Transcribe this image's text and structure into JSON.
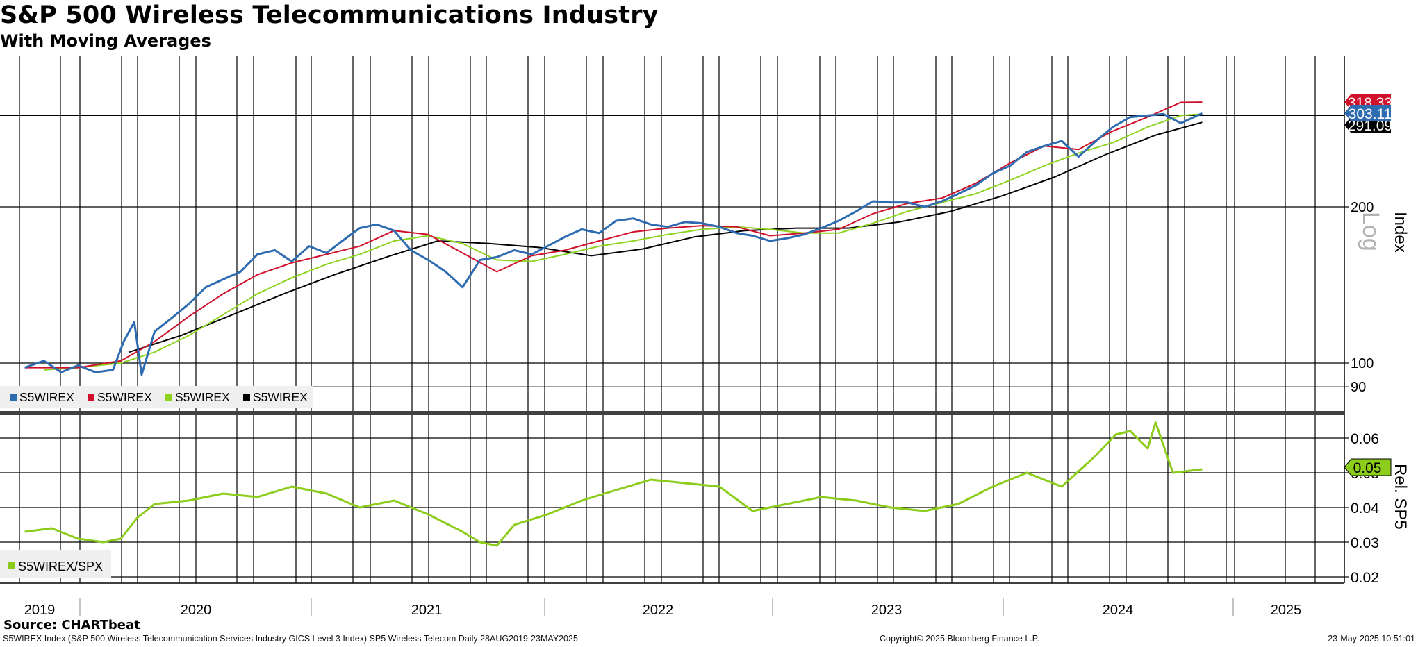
{
  "title": "S&P 500 Wireless Telecommunications Industry",
  "subtitle": "With Moving Averages",
  "source": "Source: CHARTbeat",
  "footer": {
    "left": "S5WIREX Index (S&P 500 Wireless Telecommunication Services Industry GICS Level 3 Index) SP5 Wireless Telecom  Daily 28AUG2019-23MAY2025",
    "middle": "Copyright© 2025 Bloomberg Finance L.P.",
    "right": "23-May-2025 10:51:01"
  },
  "colors": {
    "index": "#2E6BB0",
    "ma_red": "#D0102A",
    "ma_green": "#8ED320",
    "ma_black": "#000000",
    "relative": "#8CCC1A"
  },
  "chart_data": [
    {
      "type": "line",
      "panel": "upper",
      "scale": "log",
      "ylabel": "Index",
      "scale_label": "Log",
      "y_ticks": [
        90,
        100,
        200
      ],
      "ylim": [
        84,
        360
      ],
      "x_range": [
        "2019-08-28",
        "2025-05-23"
      ],
      "x_tick_labels": [
        "2019",
        "2020",
        "2021",
        "2022",
        "2023",
        "2024",
        "2025"
      ],
      "last_value_labels": [
        {
          "text": "318.33",
          "color": "#D0102A"
        },
        {
          "text": "303.11",
          "color": "#2E6BB0"
        },
        {
          "text": "291.09",
          "color": "#000000"
        }
      ],
      "legend": [
        "S5WIREX",
        "S5WIREX",
        "S5WIREX",
        "S5WIREX"
      ],
      "series": [
        {
          "name": "S5WIREX",
          "color": "#2E6BB0",
          "x": [
            "2019-08-28",
            "2019-10-01",
            "2019-11-01",
            "2019-12-01",
            "2020-01-01",
            "2020-02-01",
            "2020-02-20",
            "2020-03-10",
            "2020-03-23",
            "2020-04-15",
            "2020-05-15",
            "2020-06-15",
            "2020-07-15",
            "2020-08-15",
            "2020-09-15",
            "2020-10-15",
            "2020-11-15",
            "2020-12-15",
            "2021-01-15",
            "2021-02-15",
            "2021-03-15",
            "2021-04-15",
            "2021-05-15",
            "2021-06-15",
            "2021-07-15",
            "2021-08-15",
            "2021-09-15",
            "2021-10-15",
            "2021-11-15",
            "2021-12-15",
            "2022-01-15",
            "2022-02-15",
            "2022-03-15",
            "2022-04-15",
            "2022-05-15",
            "2022-06-15",
            "2022-07-15",
            "2022-08-15",
            "2022-09-15",
            "2022-10-15",
            "2022-11-15",
            "2022-12-15",
            "2023-01-15",
            "2023-02-15",
            "2023-03-15",
            "2023-04-15",
            "2023-05-15",
            "2023-06-15",
            "2023-07-15",
            "2023-08-15",
            "2023-09-15",
            "2023-10-15",
            "2023-11-15",
            "2023-12-15",
            "2024-01-15",
            "2024-02-15",
            "2024-03-15",
            "2024-04-15",
            "2024-05-15",
            "2024-06-15",
            "2024-07-15",
            "2024-08-15",
            "2024-09-15",
            "2024-10-15",
            "2024-11-15",
            "2024-12-15",
            "2025-01-15",
            "2025-02-15",
            "2025-03-15",
            "2025-04-15",
            "2025-05-23"
          ],
          "y": [
            98,
            101,
            96,
            99,
            96,
            97,
            110,
            120,
            95,
            115,
            122,
            130,
            140,
            145,
            150,
            162,
            165,
            157,
            168,
            163,
            172,
            182,
            185,
            180,
            165,
            158,
            150,
            140,
            158,
            160,
            165,
            162,
            168,
            175,
            181,
            178,
            188,
            190,
            185,
            183,
            187,
            186,
            183,
            178,
            176,
            172,
            174,
            177,
            182,
            188,
            196,
            205,
            204,
            204,
            200,
            205,
            212,
            220,
            232,
            240,
            255,
            262,
            268,
            250,
            268,
            285,
            298,
            300,
            302,
            290,
            303
          ]
        },
        {
          "name": "S5WIREX",
          "color": "#D0102A",
          "x": [
            "2019-08-28",
            "2019-12-01",
            "2020-02-15",
            "2020-04-15",
            "2020-06-15",
            "2020-08-15",
            "2020-10-15",
            "2020-12-15",
            "2021-02-15",
            "2021-04-15",
            "2021-06-15",
            "2021-08-15",
            "2021-10-15",
            "2021-12-15",
            "2022-02-15",
            "2022-04-15",
            "2022-06-15",
            "2022-08-15",
            "2022-10-15",
            "2022-12-15",
            "2023-02-15",
            "2023-04-15",
            "2023-06-15",
            "2023-08-15",
            "2023-10-15",
            "2023-12-15",
            "2024-02-15",
            "2024-04-15",
            "2024-06-15",
            "2024-08-15",
            "2024-10-15",
            "2024-12-15",
            "2025-02-15",
            "2025-04-15",
            "2025-05-23"
          ],
          "y": [
            98,
            98,
            101,
            110,
            123,
            136,
            148,
            156,
            162,
            168,
            180,
            177,
            163,
            150,
            161,
            165,
            172,
            179,
            182,
            184,
            183,
            176,
            178,
            181,
            194,
            203,
            208,
            222,
            243,
            262,
            258,
            280,
            298,
            318,
            318.33
          ]
        },
        {
          "name": "S5WIREX",
          "color": "#8ED320",
          "x": [
            "2019-10-01",
            "2019-12-01",
            "2020-02-15",
            "2020-04-15",
            "2020-06-15",
            "2020-08-15",
            "2020-10-15",
            "2020-12-15",
            "2021-02-15",
            "2021-04-15",
            "2021-06-15",
            "2021-08-15",
            "2021-10-15",
            "2021-12-15",
            "2022-02-15",
            "2022-04-15",
            "2022-06-15",
            "2022-08-15",
            "2022-10-15",
            "2022-12-15",
            "2023-02-15",
            "2023-04-15",
            "2023-06-15",
            "2023-08-15",
            "2023-10-15",
            "2023-12-15",
            "2024-02-15",
            "2024-04-15",
            "2024-06-15",
            "2024-08-15",
            "2024-10-15",
            "2024-12-15",
            "2025-02-15",
            "2025-04-15",
            "2025-05-23"
          ],
          "y": [
            97,
            98,
            100,
            105,
            113,
            124,
            136,
            146,
            155,
            162,
            172,
            176,
            170,
            158,
            157,
            162,
            168,
            172,
            177,
            181,
            183,
            181,
            178,
            178,
            186,
            196,
            204,
            212,
            225,
            240,
            254,
            266,
            285,
            300,
            302
          ]
        },
        {
          "name": "S5WIREX",
          "color": "#000000",
          "x": [
            "2020-03-01",
            "2020-06-01",
            "2020-09-01",
            "2020-12-01",
            "2021-03-01",
            "2021-06-01",
            "2021-09-01",
            "2021-12-01",
            "2022-03-01",
            "2022-06-01",
            "2022-09-01",
            "2022-12-01",
            "2023-03-01",
            "2023-06-01",
            "2023-09-01",
            "2023-12-01",
            "2024-03-01",
            "2024-06-01",
            "2024-09-01",
            "2024-12-01",
            "2025-03-01",
            "2025-05-23"
          ],
          "y": [
            105,
            113,
            124,
            136,
            148,
            160,
            172,
            170,
            167,
            161,
            166,
            175,
            180,
            182,
            182,
            187,
            196,
            210,
            228,
            252,
            275,
            291.09
          ]
        }
      ]
    },
    {
      "type": "line",
      "panel": "lower",
      "ylabel": "Rel. SP5",
      "y_ticks": [
        0.02,
        0.03,
        0.04,
        0.05,
        0.06
      ],
      "ylim": [
        0.0175,
        0.0665
      ],
      "x_range": [
        "2019-08-28",
        "2025-05-23"
      ],
      "last_value_labels": [
        {
          "text": "0.05",
          "color": "#8CCC1A"
        }
      ],
      "legend": [
        "S5WIREX/SPX"
      ],
      "series": [
        {
          "name": "S5WIREX/SPX",
          "color": "#8CCC1A",
          "x": [
            "2019-08-28",
            "2019-10-15",
            "2019-12-01",
            "2020-01-15",
            "2020-02-15",
            "2020-03-15",
            "2020-04-15",
            "2020-06-15",
            "2020-08-15",
            "2020-10-15",
            "2020-12-15",
            "2021-02-15",
            "2021-04-15",
            "2021-06-15",
            "2021-08-15",
            "2021-10-15",
            "2021-11-15",
            "2021-12-15",
            "2022-01-15",
            "2022-03-15",
            "2022-05-15",
            "2022-07-15",
            "2022-09-15",
            "2022-11-15",
            "2023-01-15",
            "2023-03-15",
            "2023-05-15",
            "2023-07-15",
            "2023-09-15",
            "2023-11-15",
            "2024-01-15",
            "2024-03-15",
            "2024-05-15",
            "2024-07-15",
            "2024-09-15",
            "2024-11-15",
            "2024-12-20",
            "2025-01-15",
            "2025-02-15",
            "2025-03-01",
            "2025-04-01",
            "2025-05-23"
          ],
          "y": [
            0.033,
            0.034,
            0.031,
            0.03,
            0.031,
            0.037,
            0.041,
            0.042,
            0.044,
            0.043,
            0.046,
            0.044,
            0.04,
            0.042,
            0.038,
            0.033,
            0.03,
            0.029,
            0.035,
            0.038,
            0.042,
            0.045,
            0.048,
            0.047,
            0.046,
            0.039,
            0.041,
            0.043,
            0.042,
            0.04,
            0.039,
            0.041,
            0.046,
            0.05,
            0.046,
            0.055,
            0.061,
            0.062,
            0.057,
            0.0645,
            0.05,
            0.051
          ]
        }
      ]
    }
  ]
}
